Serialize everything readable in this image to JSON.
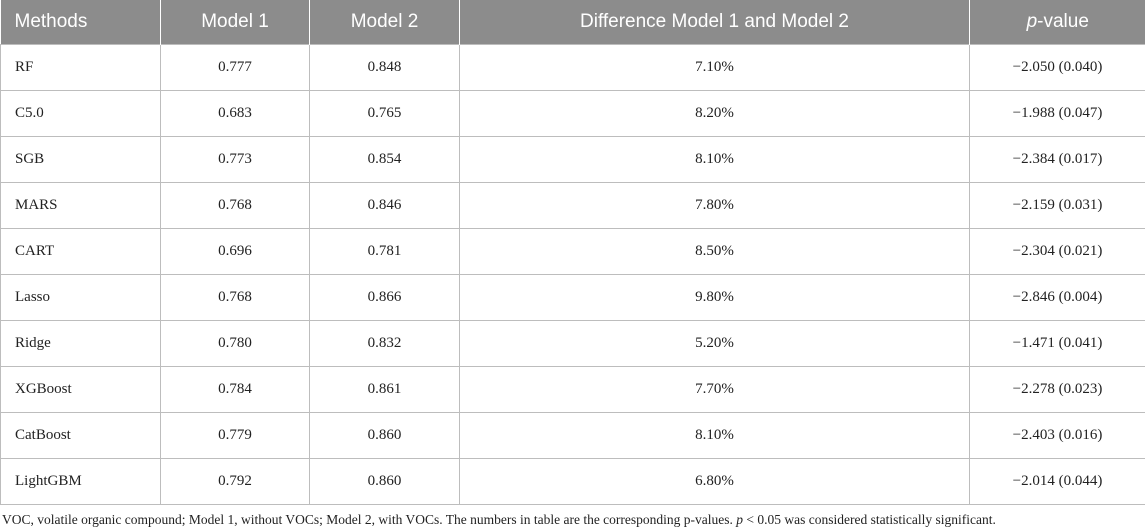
{
  "table": {
    "headers": {
      "methods": "Methods",
      "model1": "Model 1",
      "model2": "Model 2",
      "difference": "Difference Model 1 and Model 2",
      "pvalue_italic": "p",
      "pvalue_rest": "-value"
    },
    "rows": [
      {
        "method": "RF",
        "model1": "0.777",
        "model2": "0.848",
        "difference": "7.10%",
        "pvalue": "−2.050 (0.040)"
      },
      {
        "method": "C5.0",
        "model1": "0.683",
        "model2": "0.765",
        "difference": "8.20%",
        "pvalue": "−1.988 (0.047)"
      },
      {
        "method": "SGB",
        "model1": "0.773",
        "model2": "0.854",
        "difference": "8.10%",
        "pvalue": "−2.384 (0.017)"
      },
      {
        "method": "MARS",
        "model1": "0.768",
        "model2": "0.846",
        "difference": "7.80%",
        "pvalue": "−2.159 (0.031)"
      },
      {
        "method": "CART",
        "model1": "0.696",
        "model2": "0.781",
        "difference": "8.50%",
        "pvalue": "−2.304 (0.021)"
      },
      {
        "method": "Lasso",
        "model1": "0.768",
        "model2": "0.866",
        "difference": "9.80%",
        "pvalue": "−2.846 (0.004)"
      },
      {
        "method": "Ridge",
        "model1": "0.780",
        "model2": "0.832",
        "difference": "5.20%",
        "pvalue": "−1.471 (0.041)"
      },
      {
        "method": "XGBoost",
        "model1": "0.784",
        "model2": "0.861",
        "difference": "7.70%",
        "pvalue": "−2.278 (0.023)"
      },
      {
        "method": "CatBoost",
        "model1": "0.779",
        "model2": "0.860",
        "difference": "8.10%",
        "pvalue": "−2.403 (0.016)"
      },
      {
        "method": "LightGBM",
        "model1": "0.792",
        "model2": "0.860",
        "difference": "6.80%",
        "pvalue": "−2.014 (0.044)"
      }
    ]
  },
  "footnote": {
    "part1": "VOC, volatile organic compound; Model 1, without VOCs; Model 2, with VOCs. The numbers in table are the corresponding p-values. ",
    "p_italic": "p",
    "part2": " < 0.05 was considered statistically significant."
  },
  "colors": {
    "header_bg": "#8c8c8c",
    "header_text": "#ffffff",
    "border": "#bdbdbd"
  }
}
